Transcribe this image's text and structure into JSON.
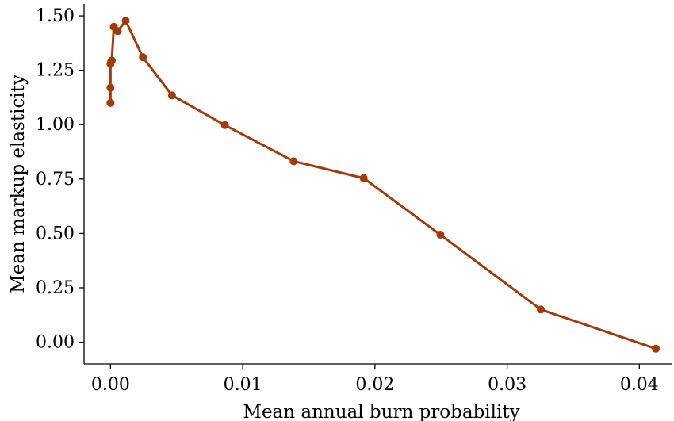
{
  "chart_data": {
    "type": "line",
    "title": "",
    "xlabel": "Mean annual burn probability",
    "ylabel": "Mean markup elasticity",
    "xlim": [
      -0.002,
      0.0425
    ],
    "ylim": [
      -0.1,
      1.555
    ],
    "xticks": [
      0.0,
      0.01,
      0.02,
      0.03,
      0.04
    ],
    "xtick_labels": [
      "0.00",
      "0.01",
      "0.02",
      "0.03",
      "0.04"
    ],
    "yticks": [
      0.0,
      0.25,
      0.5,
      0.75,
      1.0,
      1.25,
      1.5
    ],
    "ytick_labels": [
      "0.00",
      "0.25",
      "0.50",
      "0.75",
      "1.00",
      "1.25",
      "1.50"
    ],
    "grid": false,
    "legend": "none",
    "series": [
      {
        "color": "#a33a0c",
        "marker": "circle",
        "points": [
          {
            "x": 0.0,
            "y": 1.1
          },
          {
            "x": 0.0,
            "y": 1.17
          },
          {
            "x": 0.0,
            "y": 1.28
          },
          {
            "x": 5e-05,
            "y": 1.29
          },
          {
            "x": 0.0001,
            "y": 1.295
          },
          {
            "x": 0.00025,
            "y": 1.45
          },
          {
            "x": 0.00055,
            "y": 1.43
          },
          {
            "x": 0.00115,
            "y": 1.478
          },
          {
            "x": 0.00245,
            "y": 1.31
          },
          {
            "x": 0.00465,
            "y": 1.135
          },
          {
            "x": 0.00865,
            "y": 0.998
          },
          {
            "x": 0.01385,
            "y": 0.832
          },
          {
            "x": 0.01915,
            "y": 0.754
          },
          {
            "x": 0.02495,
            "y": 0.494
          },
          {
            "x": 0.03255,
            "y": 0.15
          },
          {
            "x": 0.04125,
            "y": -0.03
          }
        ]
      }
    ]
  }
}
